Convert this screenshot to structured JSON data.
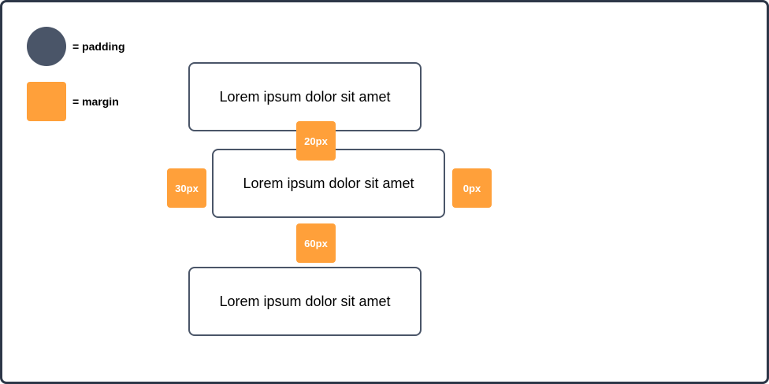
{
  "legend": [
    {
      "label": "= padding"
    },
    {
      "label": "= margin"
    }
  ],
  "boxes": [
    {
      "text": "Lorem ipsum dolor sit amet"
    },
    {
      "text": "Lorem ipsum dolor sit amet"
    },
    {
      "text": "Lorem ipsum dolor sit amet"
    }
  ],
  "margins": [
    {
      "label": "20px"
    },
    {
      "label": "30px"
    },
    {
      "label": "0px"
    },
    {
      "label": "60px"
    }
  ]
}
